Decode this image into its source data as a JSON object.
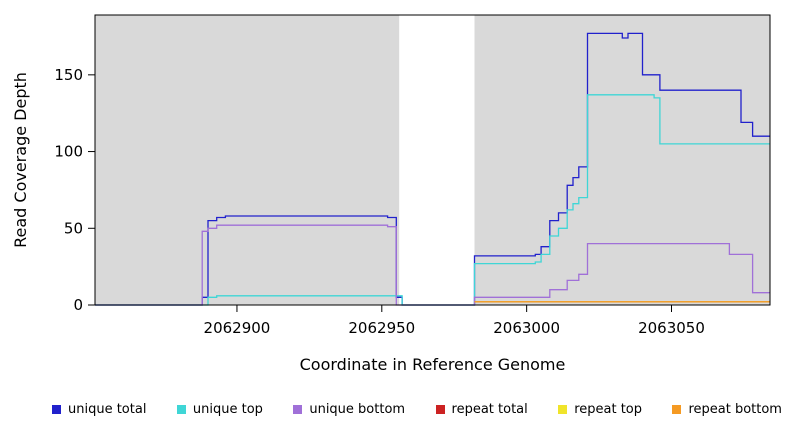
{
  "chart_data": {
    "type": "line",
    "step": "step-after",
    "title": "",
    "xlabel": "Coordinate in Reference Genome",
    "ylabel": "Read Coverage Depth",
    "xlim": [
      2062851,
      2063084
    ],
    "ylim": [
      0,
      189
    ],
    "x_ticks": [
      2062900,
      2062950,
      2063000,
      2063050
    ],
    "x_tick_labels": [
      "2062900",
      "2062950",
      "2063000",
      "2063050"
    ],
    "y_ticks": [
      0,
      50,
      100,
      150
    ],
    "y_tick_labels": [
      "0",
      "50",
      "100",
      "150"
    ],
    "plot_bg": "#ffffff",
    "shade_color": "#d9d9d9",
    "grid": false,
    "legend_position": "bottom",
    "shaded_regions": [
      {
        "x0": 2062851,
        "x1": 2062956
      },
      {
        "x0": 2062982,
        "x1": 2063084
      }
    ],
    "series": [
      {
        "name": "unique total",
        "color": "#2121cc",
        "points": [
          [
            2062851,
            0
          ],
          [
            2062888,
            5
          ],
          [
            2062890,
            55
          ],
          [
            2062893,
            57
          ],
          [
            2062896,
            58
          ],
          [
            2062952,
            57
          ],
          [
            2062955,
            5
          ],
          [
            2062957,
            0
          ],
          [
            2062982,
            32
          ],
          [
            2063003,
            33
          ],
          [
            2063005,
            38
          ],
          [
            2063008,
            55
          ],
          [
            2063011,
            60
          ],
          [
            2063014,
            78
          ],
          [
            2063016,
            83
          ],
          [
            2063018,
            90
          ],
          [
            2063021,
            177
          ],
          [
            2063033,
            174
          ],
          [
            2063035,
            177
          ],
          [
            2063040,
            150
          ],
          [
            2063046,
            140
          ],
          [
            2063074,
            119
          ],
          [
            2063078,
            110
          ]
        ]
      },
      {
        "name": "unique top",
        "color": "#3fd6d6",
        "points": [
          [
            2062851,
            0
          ],
          [
            2062890,
            5
          ],
          [
            2062893,
            6
          ],
          [
            2062957,
            0
          ],
          [
            2062982,
            27
          ],
          [
            2063003,
            28
          ],
          [
            2063005,
            33
          ],
          [
            2063008,
            45
          ],
          [
            2063011,
            50
          ],
          [
            2063014,
            62
          ],
          [
            2063016,
            66
          ],
          [
            2063018,
            70
          ],
          [
            2063021,
            137
          ],
          [
            2063044,
            135
          ],
          [
            2063046,
            105
          ]
        ]
      },
      {
        "name": "unique bottom",
        "color": "#a070d8",
        "points": [
          [
            2062851,
            0
          ],
          [
            2062888,
            48
          ],
          [
            2062890,
            50
          ],
          [
            2062893,
            52
          ],
          [
            2062952,
            51
          ],
          [
            2062955,
            0
          ],
          [
            2062982,
            5
          ],
          [
            2063008,
            10
          ],
          [
            2063014,
            16
          ],
          [
            2063018,
            20
          ],
          [
            2063021,
            40
          ],
          [
            2063070,
            33
          ],
          [
            2063078,
            8
          ]
        ]
      },
      {
        "name": "repeat total",
        "color": "#cc2222",
        "points": [
          [
            2062982,
            2
          ],
          [
            2063084,
            2
          ]
        ]
      },
      {
        "name": "repeat top",
        "color": "#f0e42a",
        "points": [
          [
            2062982,
            2
          ],
          [
            2063084,
            2
          ]
        ]
      },
      {
        "name": "repeat bottom",
        "color": "#f59a23",
        "points": [
          [
            2062982,
            2
          ],
          [
            2063084,
            2
          ]
        ]
      }
    ]
  }
}
